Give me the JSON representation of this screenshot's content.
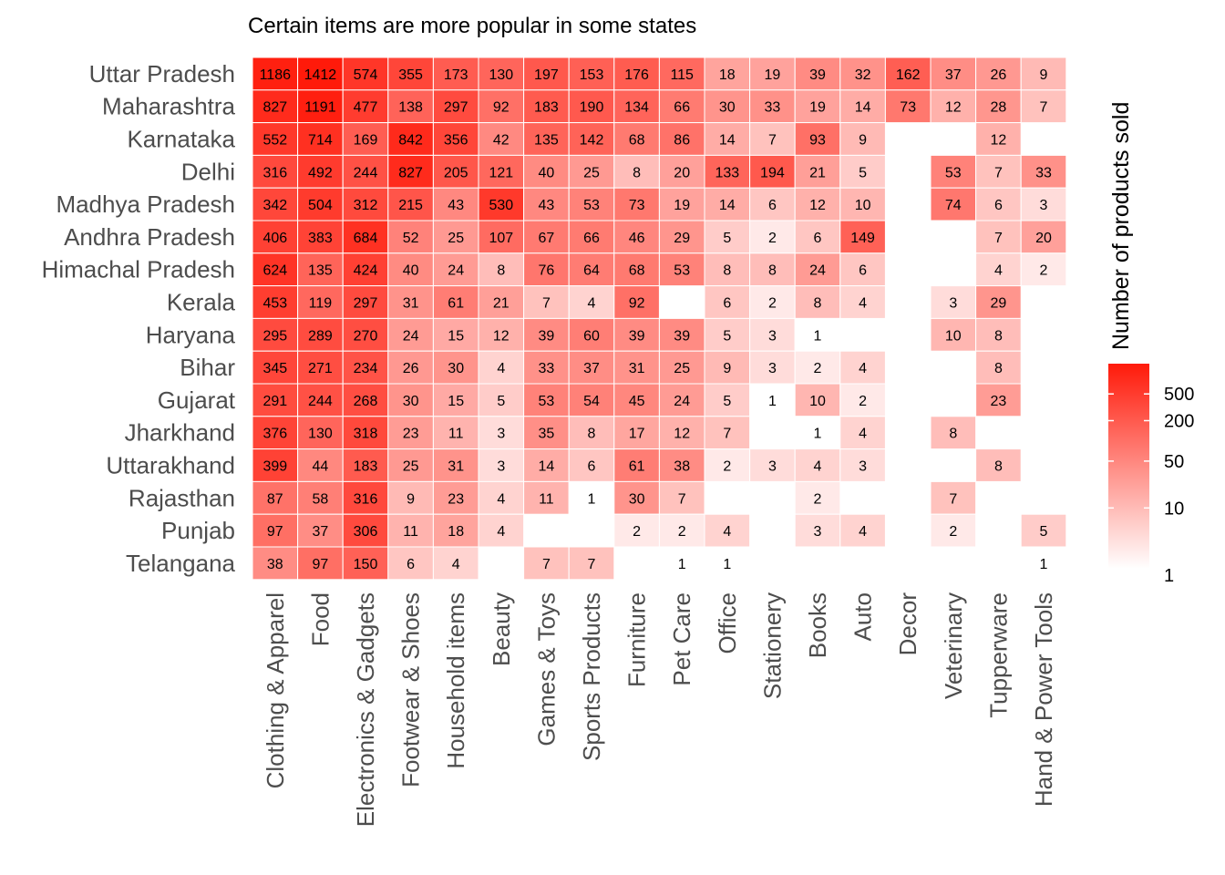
{
  "chart_data": {
    "type": "heatmap",
    "title": "Certain items are more popular in some states",
    "legend": {
      "title": "Number of products sold",
      "scale": "log",
      "ticks": [
        1,
        10,
        50,
        200,
        500
      ],
      "range": [
        1,
        1412
      ],
      "color_low": "#ffffff",
      "color_high": "#ff1a0a",
      "placement": "right"
    },
    "rows": [
      "Uttar Pradesh",
      "Maharashtra",
      "Karnataka",
      "Delhi",
      "Madhya Pradesh",
      "Andhra Pradesh",
      "Himachal Pradesh",
      "Kerala",
      "Haryana",
      "Bihar",
      "Gujarat",
      "Jharkhand",
      "Uttarakhand",
      "Rajasthan",
      "Punjab",
      "Telangana"
    ],
    "columns": [
      "Clothing & Apparel",
      "Food",
      "Electronics & Gadgets",
      "Footwear & Shoes",
      "Household items",
      "Beauty",
      "Games & Toys",
      "Sports Products",
      "Furniture",
      "Pet Care",
      "Office",
      "Stationery",
      "Books",
      "Auto",
      "Decor",
      "Veterinary",
      "Tupperware",
      "Hand & Power Tools"
    ],
    "values": [
      [
        1186,
        1412,
        574,
        355,
        173,
        130,
        197,
        153,
        176,
        115,
        18,
        19,
        39,
        32,
        162,
        37,
        26,
        9
      ],
      [
        827,
        1191,
        477,
        138,
        297,
        92,
        183,
        190,
        134,
        66,
        30,
        33,
        19,
        14,
        73,
        12,
        28,
        7
      ],
      [
        552,
        714,
        169,
        842,
        356,
        42,
        135,
        142,
        68,
        86,
        14,
        7,
        93,
        9,
        null,
        null,
        12,
        null
      ],
      [
        316,
        492,
        244,
        827,
        205,
        121,
        40,
        25,
        8,
        20,
        133,
        194,
        21,
        5,
        null,
        53,
        7,
        33
      ],
      [
        342,
        504,
        312,
        215,
        43,
        530,
        43,
        53,
        73,
        19,
        14,
        6,
        12,
        10,
        null,
        74,
        6,
        3
      ],
      [
        406,
        383,
        684,
        52,
        25,
        107,
        67,
        66,
        46,
        29,
        5,
        2,
        6,
        149,
        null,
        null,
        7,
        20
      ],
      [
        624,
        135,
        424,
        40,
        24,
        8,
        76,
        64,
        68,
        53,
        8,
        8,
        24,
        6,
        null,
        null,
        4,
        2
      ],
      [
        453,
        119,
        297,
        31,
        61,
        21,
        7,
        4,
        92,
        null,
        6,
        2,
        8,
        4,
        null,
        3,
        29,
        null
      ],
      [
        295,
        289,
        270,
        24,
        15,
        12,
        39,
        60,
        39,
        39,
        5,
        3,
        1,
        null,
        null,
        10,
        8,
        null
      ],
      [
        345,
        271,
        234,
        26,
        30,
        4,
        33,
        37,
        31,
        25,
        9,
        3,
        2,
        4,
        null,
        null,
        8,
        null
      ],
      [
        291,
        244,
        268,
        30,
        15,
        5,
        53,
        54,
        45,
        24,
        5,
        1,
        10,
        2,
        null,
        null,
        23,
        null
      ],
      [
        376,
        130,
        318,
        23,
        11,
        3,
        35,
        8,
        17,
        12,
        7,
        null,
        1,
        4,
        null,
        8,
        null,
        null
      ],
      [
        399,
        44,
        183,
        25,
        31,
        3,
        14,
        6,
        61,
        38,
        2,
        3,
        4,
        3,
        null,
        null,
        8,
        null
      ],
      [
        87,
        58,
        316,
        9,
        23,
        4,
        11,
        1,
        30,
        7,
        null,
        null,
        2,
        null,
        null,
        7,
        null,
        null
      ],
      [
        97,
        37,
        306,
        11,
        18,
        4,
        null,
        null,
        2,
        2,
        4,
        null,
        3,
        4,
        null,
        2,
        null,
        5
      ],
      [
        38,
        97,
        150,
        6,
        4,
        null,
        7,
        7,
        null,
        1,
        1,
        null,
        null,
        null,
        null,
        null,
        null,
        1
      ]
    ]
  }
}
